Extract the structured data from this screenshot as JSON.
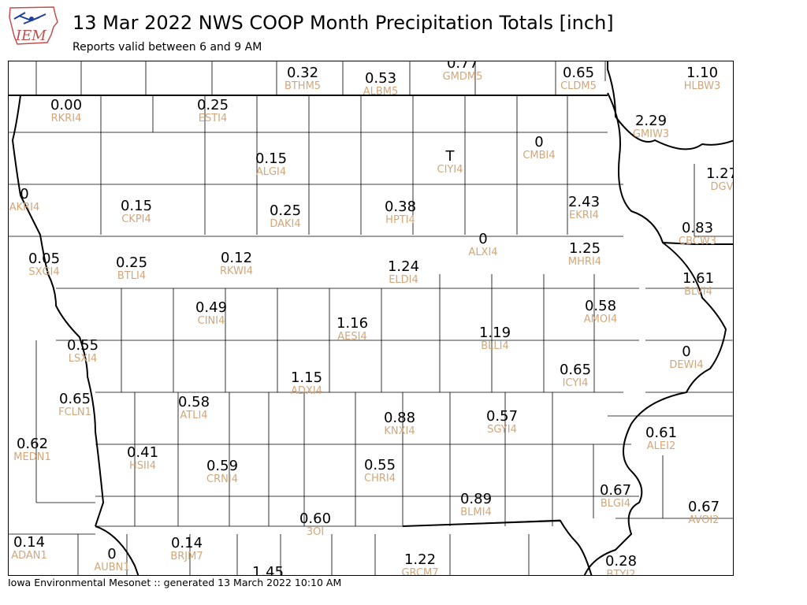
{
  "header": {
    "title": "13 Mar 2022 NWS COOP Month Precipitation Totals [inch]",
    "subtitle": "Reports valid between 6 and 9 AM"
  },
  "logo": {
    "text": "IEM",
    "icon": "iem-logo-icon"
  },
  "footer": {
    "text": "Iowa Environmental Mesonet :: generated 13 March 2022 10:10 AM"
  },
  "colors": {
    "value_text": "#000000",
    "station_id": "#d2a679",
    "border": "#000000"
  },
  "map": {
    "stations": [
      {
        "id": "BTHM5",
        "value": "0.32"
      },
      {
        "id": "ALBM5",
        "value": "0.53"
      },
      {
        "id": "GMDM5",
        "value": "0.77"
      },
      {
        "id": "CLDM5",
        "value": "0.65"
      },
      {
        "id": "HLBW3",
        "value": "1.10"
      },
      {
        "id": "RKRI4",
        "value": "0.00"
      },
      {
        "id": "ESTI4",
        "value": "0.25"
      },
      {
        "id": "GMIW3",
        "value": "2.29"
      },
      {
        "id": "ALGI4",
        "value": "0.15"
      },
      {
        "id": "CIYI4",
        "value": "T"
      },
      {
        "id": "CMBI4",
        "value": "0"
      },
      {
        "id": "DGV",
        "value": "1.27"
      },
      {
        "id": "AKRI4",
        "value": "0"
      },
      {
        "id": "CKPI4",
        "value": "0.15"
      },
      {
        "id": "DAKI4",
        "value": "0.25"
      },
      {
        "id": "HPTI4",
        "value": "0.38"
      },
      {
        "id": "EKRI4",
        "value": "2.43"
      },
      {
        "id": "CBCW3",
        "value": "0.83"
      },
      {
        "id": "SXGI4",
        "value": "0.05"
      },
      {
        "id": "BTLI4",
        "value": "0.25"
      },
      {
        "id": "RKWI4",
        "value": "0.12"
      },
      {
        "id": "ELDI4",
        "value": "1.24"
      },
      {
        "id": "ALXI4",
        "value": "0"
      },
      {
        "id": "MHRI4",
        "value": "1.25"
      },
      {
        "id": "BLVI4",
        "value": "1.61"
      },
      {
        "id": "CINI4",
        "value": "0.49"
      },
      {
        "id": "AESI4",
        "value": "1.16"
      },
      {
        "id": "AMOI4",
        "value": "0.58"
      },
      {
        "id": "LSXI4",
        "value": "0.55"
      },
      {
        "id": "BLLI4",
        "value": "1.19"
      },
      {
        "id": "DEWI4",
        "value": "0"
      },
      {
        "id": "ADXI4",
        "value": "1.15"
      },
      {
        "id": "ICYI4",
        "value": "0.65"
      },
      {
        "id": "FCLN1",
        "value": "0.65"
      },
      {
        "id": "ATLI4",
        "value": "0.58"
      },
      {
        "id": "KNXI4",
        "value": "0.88"
      },
      {
        "id": "SGYI4",
        "value": "0.57"
      },
      {
        "id": "ALEI2",
        "value": "0.61"
      },
      {
        "id": "MEDN1",
        "value": "0.62"
      },
      {
        "id": "HSII4",
        "value": "0.41"
      },
      {
        "id": "CRNI4",
        "value": "0.59"
      },
      {
        "id": "CHRI4",
        "value": "0.55"
      },
      {
        "id": "BLMI4",
        "value": "0.89"
      },
      {
        "id": "BLGI4",
        "value": "0.67"
      },
      {
        "id": "AVOI2",
        "value": "0.67"
      },
      {
        "id": "3OI",
        "value": "0.60"
      },
      {
        "id": "ADAN1",
        "value": "0.14"
      },
      {
        "id": "AUBN1",
        "value": "0"
      },
      {
        "id": "BRJM7",
        "value": "0.14"
      },
      {
        "id": "GRCM7",
        "value": "1.22"
      },
      {
        "id": "BTYI2",
        "value": "0.28"
      },
      {
        "id": "",
        "value": "1.45"
      }
    ]
  }
}
